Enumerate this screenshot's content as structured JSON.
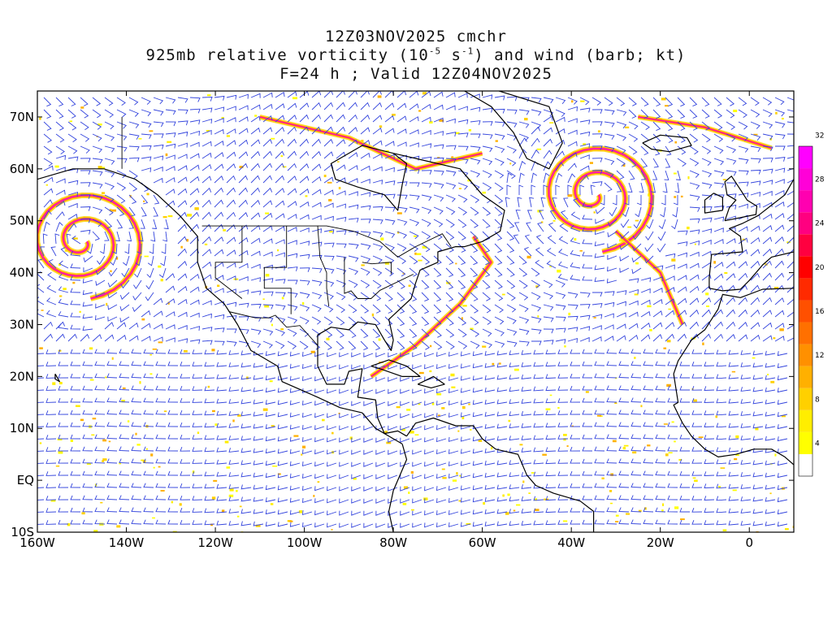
{
  "title": {
    "line1": "12Z03NOV2025 cmchr",
    "line2_a": "925mb relative vorticity (10",
    "line2_exp1": "-5",
    "line2_b": " s",
    "line2_exp2": "-1",
    "line2_c": ") and wind (barb; kt)",
    "line3": "F=24 h ; Valid 12Z04NOV2025"
  },
  "map": {
    "lon_range": [
      -160,
      10
    ],
    "lat_range": [
      -10,
      75
    ],
    "lon_ticks": [
      "160W",
      "140W",
      "120W",
      "100W",
      "80W",
      "60W",
      "40W",
      "20W",
      "0"
    ],
    "lon_tick_values": [
      -160,
      -140,
      -120,
      -100,
      -80,
      -60,
      -40,
      -20,
      0
    ],
    "lat_ticks": [
      "70N",
      "60N",
      "50N",
      "40N",
      "30N",
      "20N",
      "10N",
      "EQ",
      "10S"
    ],
    "lat_tick_values": [
      70,
      60,
      50,
      40,
      30,
      20,
      10,
      0,
      -10
    ],
    "barb_color": "#3344dd",
    "coast_color": "#000000"
  },
  "colorbar": {
    "labels": [
      "4",
      "8",
      "12",
      "16",
      "20",
      "24",
      "28",
      "32"
    ],
    "colors": [
      "#ffffff",
      "#ffff00",
      "#ffee00",
      "#ffd000",
      "#ffb000",
      "#ff9000",
      "#ff7000",
      "#ff5000",
      "#ff2a00",
      "#ff0000",
      "#ff0040",
      "#ff0080",
      "#ff00b0",
      "#ff00d8",
      "#ff00ff"
    ]
  },
  "features": {
    "vortices": [
      {
        "name": "north-pacific-low",
        "lon": -150,
        "lat": 46
      },
      {
        "name": "atlantic-low",
        "lon": -35,
        "lat": 55
      }
    ]
  }
}
